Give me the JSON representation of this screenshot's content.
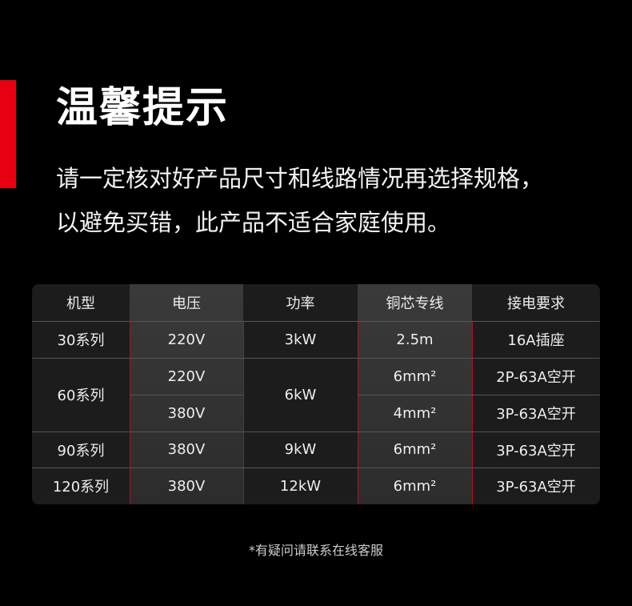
{
  "title": "温馨提示",
  "description": [
    "请一定核对好产品尺寸和线路情况再选择规格，",
    "以避免买错，此产品不适合家庭使用。"
  ],
  "table": {
    "headers": [
      "机型",
      "电压",
      "功率",
      "铜芯专线",
      "接电要求"
    ],
    "model": [
      "30系列",
      "60系列",
      "90系列",
      "120系列"
    ],
    "voltage": [
      "220V",
      "220V",
      "380V",
      "380V",
      "380V"
    ],
    "power": [
      "3kW",
      "6kW",
      "9kW",
      "12kW"
    ],
    "wire": [
      "2.5m",
      "6mm²",
      "4mm²",
      "6mm²",
      "6mm²"
    ],
    "requirement": [
      "16A插座",
      "2P-63A空开",
      "3P-63A空开",
      "3P-63A空开",
      "3P-63A空开"
    ]
  },
  "note": "*有疑问请联系在线客服",
  "colors": {
    "accent": "#e60012",
    "background": "#000000"
  }
}
